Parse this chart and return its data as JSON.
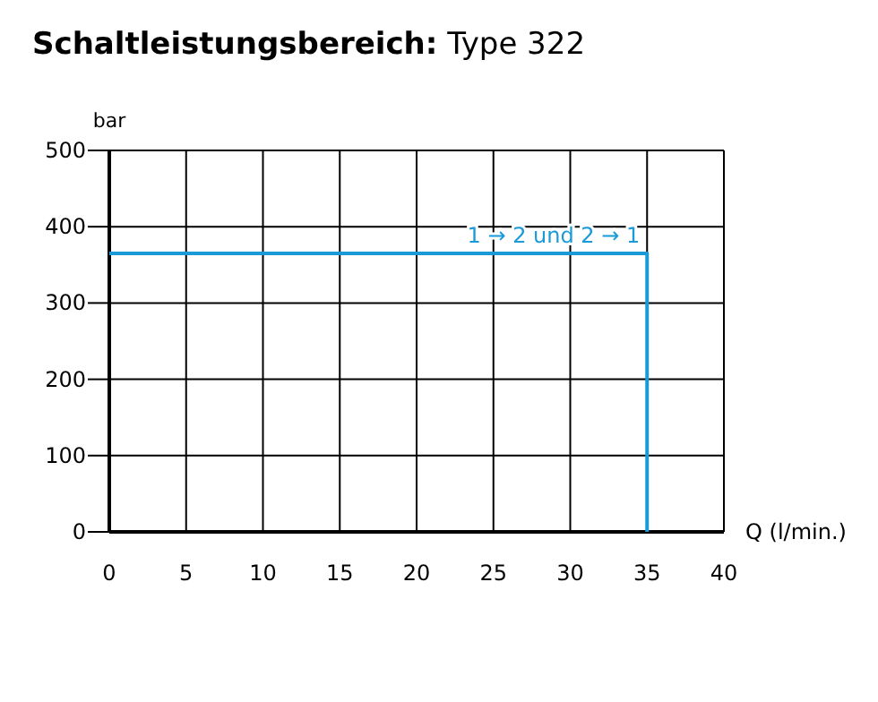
{
  "chart_data": {
    "type": "step",
    "title": "Schaltleistungsbereich: Type 322",
    "xlabel": "Q (l/min.)",
    "ylabel": "bar",
    "x": [
      0,
      35
    ],
    "xlim": [
      0,
      40
    ],
    "xticks": [
      0,
      5,
      10,
      15,
      20,
      25,
      30,
      35,
      40
    ],
    "ylim": [
      0,
      500
    ],
    "yticks": [
      0,
      100,
      200,
      300,
      400,
      500
    ],
    "grid": true,
    "marker": "none",
    "line_style": "solid",
    "series": [
      {
        "name": "1 → 2 und 2 → 1",
        "color": "#1a9ad6",
        "values": [
          365,
          0
        ]
      }
    ]
  }
}
